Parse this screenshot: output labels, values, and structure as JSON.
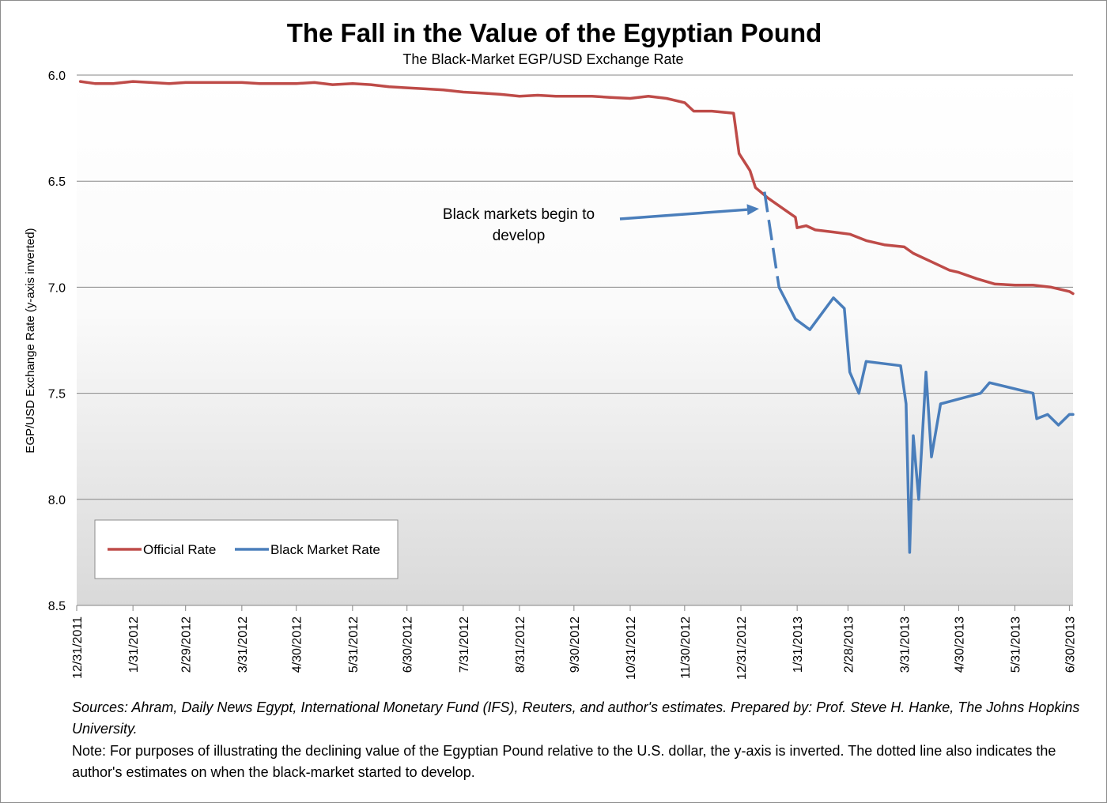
{
  "chart_data": {
    "type": "line",
    "title": "The Fall in the Value of the Egyptian Pound",
    "subtitle": "The Black-Market EGP/USD Exchange Rate",
    "ylabel": "EGP/USD Exchange Rate (y-axis inverted)",
    "xlabel": "",
    "y_inverted": true,
    "ylim": [
      6.0,
      8.5
    ],
    "yticks": [
      "6.0",
      "6.5",
      "7.0",
      "7.5",
      "8.0",
      "8.5"
    ],
    "xlim": [
      "2011-12-31",
      "2013-07-02"
    ],
    "xtick_dates": [
      "2011-12-31",
      "2012-01-31",
      "2012-02-29",
      "2012-03-31",
      "2012-04-30",
      "2012-05-31",
      "2012-06-30",
      "2012-07-31",
      "2012-08-31",
      "2012-09-30",
      "2012-10-31",
      "2012-11-30",
      "2012-12-31",
      "2013-01-31",
      "2013-02-28",
      "2013-03-31",
      "2013-04-30",
      "2013-05-31",
      "2013-06-30"
    ],
    "xtick_labels": [
      "12/31/2011",
      "1/31/2012",
      "2/29/2012",
      "3/31/2012",
      "4/30/2012",
      "5/31/2012",
      "6/30/2012",
      "7/31/2012",
      "8/31/2012",
      "9/30/2012",
      "10/31/2012",
      "11/30/2012",
      "12/31/2012",
      "1/31/2013",
      "2/28/2013",
      "3/31/2013",
      "4/30/2013",
      "5/31/2013",
      "6/30/2013"
    ],
    "grid": true,
    "legend_position": "bottom-left",
    "series": [
      {
        "name": "Official Rate",
        "color": "#be4b48",
        "points": [
          [
            "2012-01-02",
            6.03
          ],
          [
            "2012-01-10",
            6.04
          ],
          [
            "2012-01-20",
            6.04
          ],
          [
            "2012-01-31",
            6.03
          ],
          [
            "2012-02-10",
            6.035
          ],
          [
            "2012-02-20",
            6.04
          ],
          [
            "2012-02-29",
            6.035
          ],
          [
            "2012-03-10",
            6.035
          ],
          [
            "2012-03-20",
            6.035
          ],
          [
            "2012-03-31",
            6.035
          ],
          [
            "2012-04-10",
            6.04
          ],
          [
            "2012-04-20",
            6.04
          ],
          [
            "2012-04-30",
            6.04
          ],
          [
            "2012-05-10",
            6.035
          ],
          [
            "2012-05-20",
            6.045
          ],
          [
            "2012-05-31",
            6.04
          ],
          [
            "2012-06-10",
            6.045
          ],
          [
            "2012-06-20",
            6.055
          ],
          [
            "2012-06-30",
            6.06
          ],
          [
            "2012-07-10",
            6.065
          ],
          [
            "2012-07-20",
            6.07
          ],
          [
            "2012-07-31",
            6.08
          ],
          [
            "2012-08-10",
            6.085
          ],
          [
            "2012-08-20",
            6.09
          ],
          [
            "2012-08-31",
            6.1
          ],
          [
            "2012-09-10",
            6.095
          ],
          [
            "2012-09-20",
            6.1
          ],
          [
            "2012-09-30",
            6.1
          ],
          [
            "2012-10-10",
            6.1
          ],
          [
            "2012-10-20",
            6.105
          ],
          [
            "2012-10-31",
            6.11
          ],
          [
            "2012-11-10",
            6.1
          ],
          [
            "2012-11-20",
            6.11
          ],
          [
            "2012-11-30",
            6.13
          ],
          [
            "2012-12-05",
            6.17
          ],
          [
            "2012-12-15",
            6.17
          ],
          [
            "2012-12-27",
            6.18
          ],
          [
            "2012-12-30",
            6.37
          ],
          [
            "2013-01-02",
            6.41
          ],
          [
            "2013-01-05",
            6.45
          ],
          [
            "2013-01-08",
            6.53
          ],
          [
            "2013-01-15",
            6.58
          ],
          [
            "2013-01-25",
            6.64
          ],
          [
            "2013-01-30",
            6.67
          ],
          [
            "2013-01-31",
            6.72
          ],
          [
            "2013-02-05",
            6.71
          ],
          [
            "2013-02-10",
            6.73
          ],
          [
            "2013-02-20",
            6.74
          ],
          [
            "2013-03-01",
            6.75
          ],
          [
            "2013-03-10",
            6.78
          ],
          [
            "2013-03-20",
            6.8
          ],
          [
            "2013-03-31",
            6.81
          ],
          [
            "2013-04-05",
            6.84
          ],
          [
            "2013-04-15",
            6.88
          ],
          [
            "2013-04-25",
            6.92
          ],
          [
            "2013-04-30",
            6.93
          ],
          [
            "2013-05-10",
            6.96
          ],
          [
            "2013-05-20",
            6.985
          ],
          [
            "2013-05-31",
            6.99
          ],
          [
            "2013-06-10",
            6.99
          ],
          [
            "2013-06-20",
            7.0
          ],
          [
            "2013-06-30",
            7.02
          ],
          [
            "2013-07-02",
            7.03
          ]
        ]
      },
      {
        "name": "Black Market Rate",
        "color": "#4a7ebb",
        "points": [
          [
            "2013-01-21",
            7.0
          ],
          [
            "2013-01-30",
            7.15
          ],
          [
            "2013-02-07",
            7.2
          ],
          [
            "2013-02-20",
            7.05
          ],
          [
            "2013-02-26",
            7.1
          ],
          [
            "2013-03-01",
            7.4
          ],
          [
            "2013-03-06",
            7.5
          ],
          [
            "2013-03-10",
            7.35
          ],
          [
            "2013-03-29",
            7.37
          ],
          [
            "2013-04-01",
            7.55
          ],
          [
            "2013-04-03",
            8.25
          ],
          [
            "2013-04-05",
            7.7
          ],
          [
            "2013-04-08",
            8.0
          ],
          [
            "2013-04-12",
            7.4
          ],
          [
            "2013-04-15",
            7.8
          ],
          [
            "2013-04-20",
            7.55
          ],
          [
            "2013-05-12",
            7.5
          ],
          [
            "2013-05-17",
            7.45
          ],
          [
            "2013-06-10",
            7.5
          ],
          [
            "2013-06-12",
            7.62
          ],
          [
            "2013-06-18",
            7.6
          ],
          [
            "2013-06-24",
            7.65
          ],
          [
            "2013-06-30",
            7.6
          ],
          [
            "2013-07-02",
            7.6
          ]
        ]
      }
    ],
    "estimate_segment": {
      "style": "dashed",
      "color": "#4a7ebb",
      "points": [
        [
          "2013-01-13",
          6.55
        ],
        [
          "2013-01-21",
          7.0
        ]
      ]
    },
    "annotation": {
      "lines": [
        "Black markets begin to",
        "develop"
      ],
      "arrow_to": [
        "2013-01-10",
        6.63
      ]
    }
  },
  "notes": {
    "sources": "Sources: Ahram, Daily News Egypt, International Monetary Fund  (IFS), Reuters, and author's estimates. Prepared by: Prof. Steve H. Hanke, The Johns Hopkins University.",
    "note": "Note: For purposes of illustrating the declining value of the Egyptian Pound relative to the U.S. dollar, the y-axis is inverted. The dotted line also indicates the author's estimates on when the black-market started to develop."
  }
}
